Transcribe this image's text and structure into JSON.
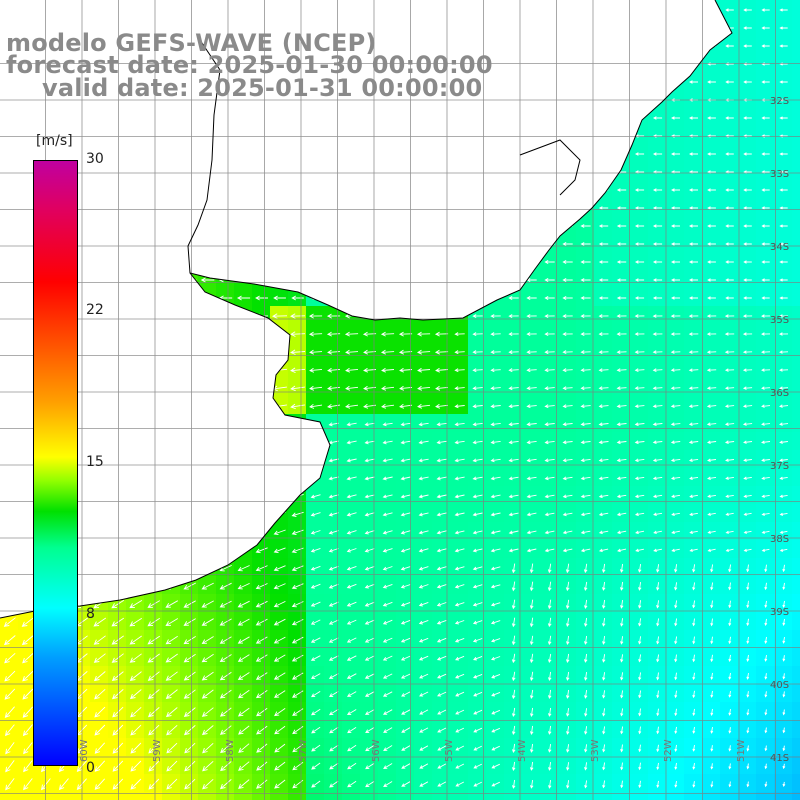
{
  "header": {
    "line1": "modelo GEFS-WAVE (NCEP)",
    "line2": "forecast date: 2025-01-30 00:00:00",
    "line3": "valid date: 2025-01-31 00:00:00"
  },
  "colorbar": {
    "unit": "[m/s]",
    "min": 0,
    "max": 30,
    "ticks": [
      "30",
      "22",
      "15",
      "8",
      "0"
    ],
    "tick_values": [
      30,
      22,
      15,
      8,
      0
    ]
  },
  "grid": {
    "lat_labels": [
      "32S",
      "33S",
      "34S",
      "35S",
      "36S",
      "37S",
      "38S",
      "39S",
      "40S",
      "41S"
    ],
    "lat_values": [
      32,
      33,
      34,
      35,
      36,
      37,
      38,
      39,
      40,
      41
    ],
    "lon_labels": [
      "60W",
      "59W",
      "58W",
      "57W",
      "56W",
      "55W",
      "54W",
      "53W",
      "52W",
      "51W"
    ],
    "lon_values": [
      60,
      59,
      58,
      57,
      56,
      55,
      54,
      53,
      52,
      51
    ]
  },
  "colors": {
    "land": "#ffffff",
    "grid_line": "#7f7f7f",
    "coast": "#000000",
    "arrow": "#ffffff",
    "header_text": "#8a8a8a"
  }
}
